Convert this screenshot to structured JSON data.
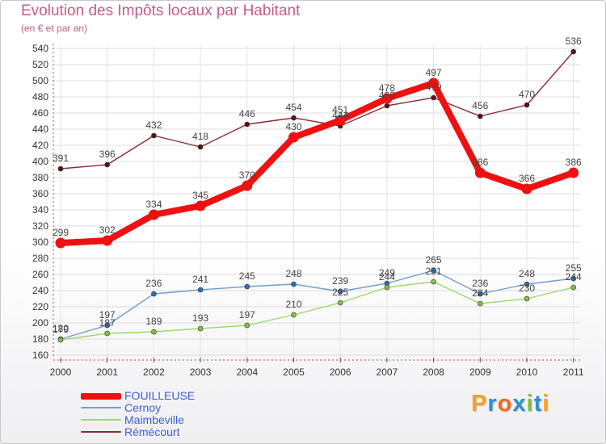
{
  "title": "Evolution des Impôts locaux par Habitant",
  "subtitle": "(en € et par an)",
  "logo": {
    "text": "Proxiti",
    "letter_colors": [
      "#f6a31e",
      "#2f8fd3",
      "#f16a1f",
      "#2f8fd3",
      "#7cbf3a",
      "#2f8fd3",
      "#f6a31e"
    ]
  },
  "chart_data": {
    "type": "line",
    "x": [
      "2000",
      "2001",
      "2002",
      "2003",
      "2004",
      "2005",
      "2006",
      "2007",
      "2008",
      "2009",
      "2010",
      "2011"
    ],
    "ylim": [
      160,
      540
    ],
    "yticks": [
      160,
      180,
      200,
      220,
      240,
      260,
      280,
      300,
      320,
      340,
      360,
      380,
      400,
      420,
      440,
      460,
      480,
      500,
      520,
      540
    ],
    "series": [
      {
        "name": "Rémecourt",
        "color": "#8b2a2f",
        "marker": "#5a1216",
        "values": [
          391,
          396,
          432,
          418,
          446,
          454,
          444,
          469,
          479,
          456,
          470,
          536
        ],
        "labels": [
          "391",
          "396",
          "432",
          "418",
          "446",
          "454",
          "444",
          "469",
          "479",
          "456",
          "470",
          "536"
        ]
      },
      {
        "name": "FOUILLEUSE",
        "color": "#ee1111",
        "marker": "#ee1111",
        "values": [
          299,
          302,
          334,
          345,
          370,
          430,
          451,
          478,
          497,
          386,
          366,
          386
        ],
        "labels": [
          "299",
          "302",
          "334",
          "345",
          "370",
          "430",
          "451",
          "478",
          "497",
          "386",
          "366",
          "386"
        ]
      },
      {
        "name": "Cernoy",
        "color": "#6f9fcf",
        "marker": "#2f6fb8",
        "values": [
          180,
          197,
          236,
          241,
          245,
          248,
          239,
          249,
          265,
          236,
          248,
          255
        ],
        "labels": [
          "180",
          "197",
          "236",
          "241",
          "245",
          "248",
          "239",
          "249",
          "265",
          "236",
          "248",
          "255"
        ]
      },
      {
        "name": "Maimbeville",
        "color": "#9ed66f",
        "marker": "#7cc545",
        "values": [
          179,
          187,
          189,
          193,
          197,
          210,
          225,
          244,
          251,
          224,
          230,
          244
        ],
        "labels": [
          "179",
          "187",
          "189",
          "193",
          "197",
          "210",
          "225",
          "244",
          "251",
          "224",
          "230",
          "244"
        ]
      }
    ],
    "legend": [
      {
        "name": "FOUILLEUSE",
        "color": "#ee1111"
      },
      {
        "name": "Cernoy",
        "color": "#6f9fcf"
      },
      {
        "name": "Maimbeville",
        "color": "#9ed66f"
      },
      {
        "name": "Rémécourt",
        "color": "#8b2a2f"
      }
    ]
  }
}
